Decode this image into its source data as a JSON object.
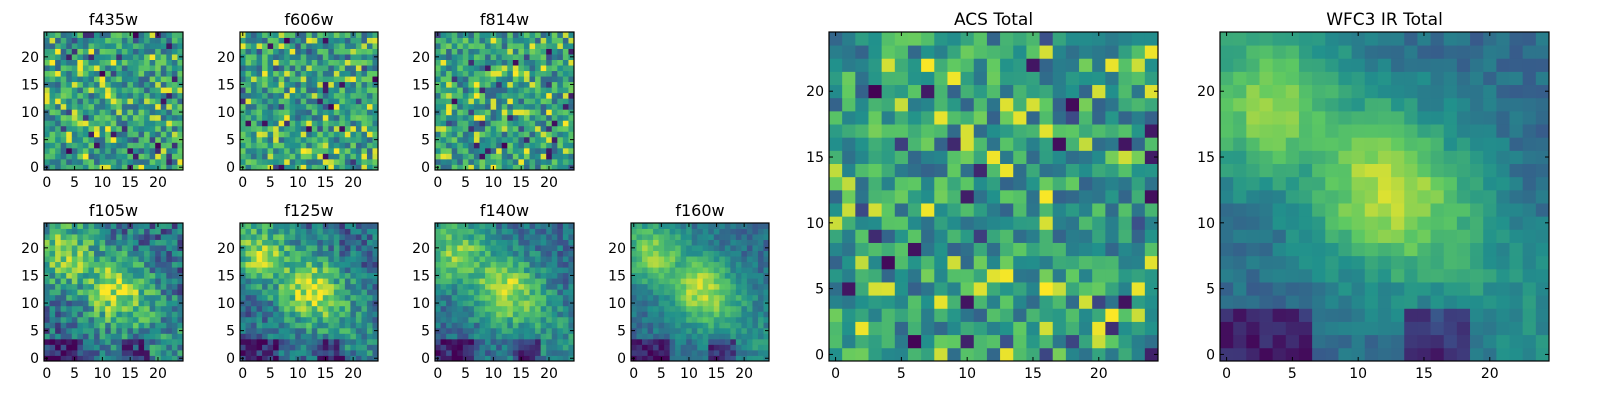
{
  "figure": {
    "colormap": "viridis",
    "colormap_stops": [
      "#440154",
      "#3b528b",
      "#21918c",
      "#5ec962",
      "#fde725"
    ],
    "axis_color": "#000000"
  },
  "chart_data": [
    {
      "type": "heatmap",
      "title": "f435w",
      "grid": [
        25,
        25
      ],
      "xlim": [
        -0.5,
        24.5
      ],
      "ylim": [
        -0.5,
        24.5
      ],
      "xticks": [
        0,
        5,
        10,
        15,
        20
      ],
      "yticks": [
        0,
        5,
        10,
        15,
        20
      ],
      "pattern": "noise",
      "seed": 11
    },
    {
      "type": "heatmap",
      "title": "f606w",
      "grid": [
        25,
        25
      ],
      "xlim": [
        -0.5,
        24.5
      ],
      "ylim": [
        -0.5,
        24.5
      ],
      "xticks": [
        0,
        5,
        10,
        15,
        20
      ],
      "yticks": [
        0,
        5,
        10,
        15,
        20
      ],
      "pattern": "noise",
      "seed": 23
    },
    {
      "type": "heatmap",
      "title": "f814w",
      "grid": [
        25,
        25
      ],
      "xlim": [
        -0.5,
        24.5
      ],
      "ylim": [
        -0.5,
        24.5
      ],
      "xticks": [
        0,
        5,
        10,
        15,
        20
      ],
      "yticks": [
        0,
        5,
        10,
        15,
        20
      ],
      "pattern": "noise",
      "seed": 37
    },
    {
      "type": "heatmap",
      "title": "f105w",
      "grid": [
        25,
        25
      ],
      "xlim": [
        -0.5,
        24.5
      ],
      "ylim": [
        -0.5,
        24.5
      ],
      "xticks": [
        0,
        5,
        10,
        15,
        20
      ],
      "yticks": [
        0,
        5,
        10,
        15,
        20
      ],
      "pattern": "smooth",
      "seed": 41,
      "noise_level": 0.45
    },
    {
      "type": "heatmap",
      "title": "f125w",
      "grid": [
        25,
        25
      ],
      "xlim": [
        -0.5,
        24.5
      ],
      "ylim": [
        -0.5,
        24.5
      ],
      "xticks": [
        0,
        5,
        10,
        15,
        20
      ],
      "yticks": [
        0,
        5,
        10,
        15,
        20
      ],
      "pattern": "smooth",
      "seed": 53,
      "noise_level": 0.4
    },
    {
      "type": "heatmap",
      "title": "f140w",
      "grid": [
        25,
        25
      ],
      "xlim": [
        -0.5,
        24.5
      ],
      "ylim": [
        -0.5,
        24.5
      ],
      "xticks": [
        0,
        5,
        10,
        15,
        20
      ],
      "yticks": [
        0,
        5,
        10,
        15,
        20
      ],
      "pattern": "smooth",
      "seed": 67,
      "noise_level": 0.3
    },
    {
      "type": "heatmap",
      "title": "f160w",
      "grid": [
        25,
        25
      ],
      "xlim": [
        -0.5,
        24.5
      ],
      "ylim": [
        -0.5,
        24.5
      ],
      "xticks": [
        0,
        5,
        10,
        15,
        20
      ],
      "yticks": [
        0,
        5,
        10,
        15,
        20
      ],
      "pattern": "smooth",
      "seed": 71,
      "noise_level": 0.22
    },
    {
      "type": "heatmap",
      "title": "ACS Total",
      "grid": [
        25,
        25
      ],
      "xlim": [
        -0.5,
        24.5
      ],
      "ylim": [
        -0.5,
        24.5
      ],
      "xticks": [
        0,
        5,
        10,
        15,
        20
      ],
      "yticks": [
        0,
        5,
        10,
        15,
        20
      ],
      "pattern": "noise",
      "seed": 89
    },
    {
      "type": "heatmap",
      "title": "WFC3 IR Total",
      "grid": [
        25,
        25
      ],
      "xlim": [
        -0.5,
        24.5
      ],
      "ylim": [
        -0.5,
        24.5
      ],
      "xticks": [
        0,
        5,
        10,
        15,
        20
      ],
      "yticks": [
        0,
        5,
        10,
        15,
        20
      ],
      "pattern": "smooth",
      "seed": 97,
      "noise_level": 0.15
    }
  ]
}
